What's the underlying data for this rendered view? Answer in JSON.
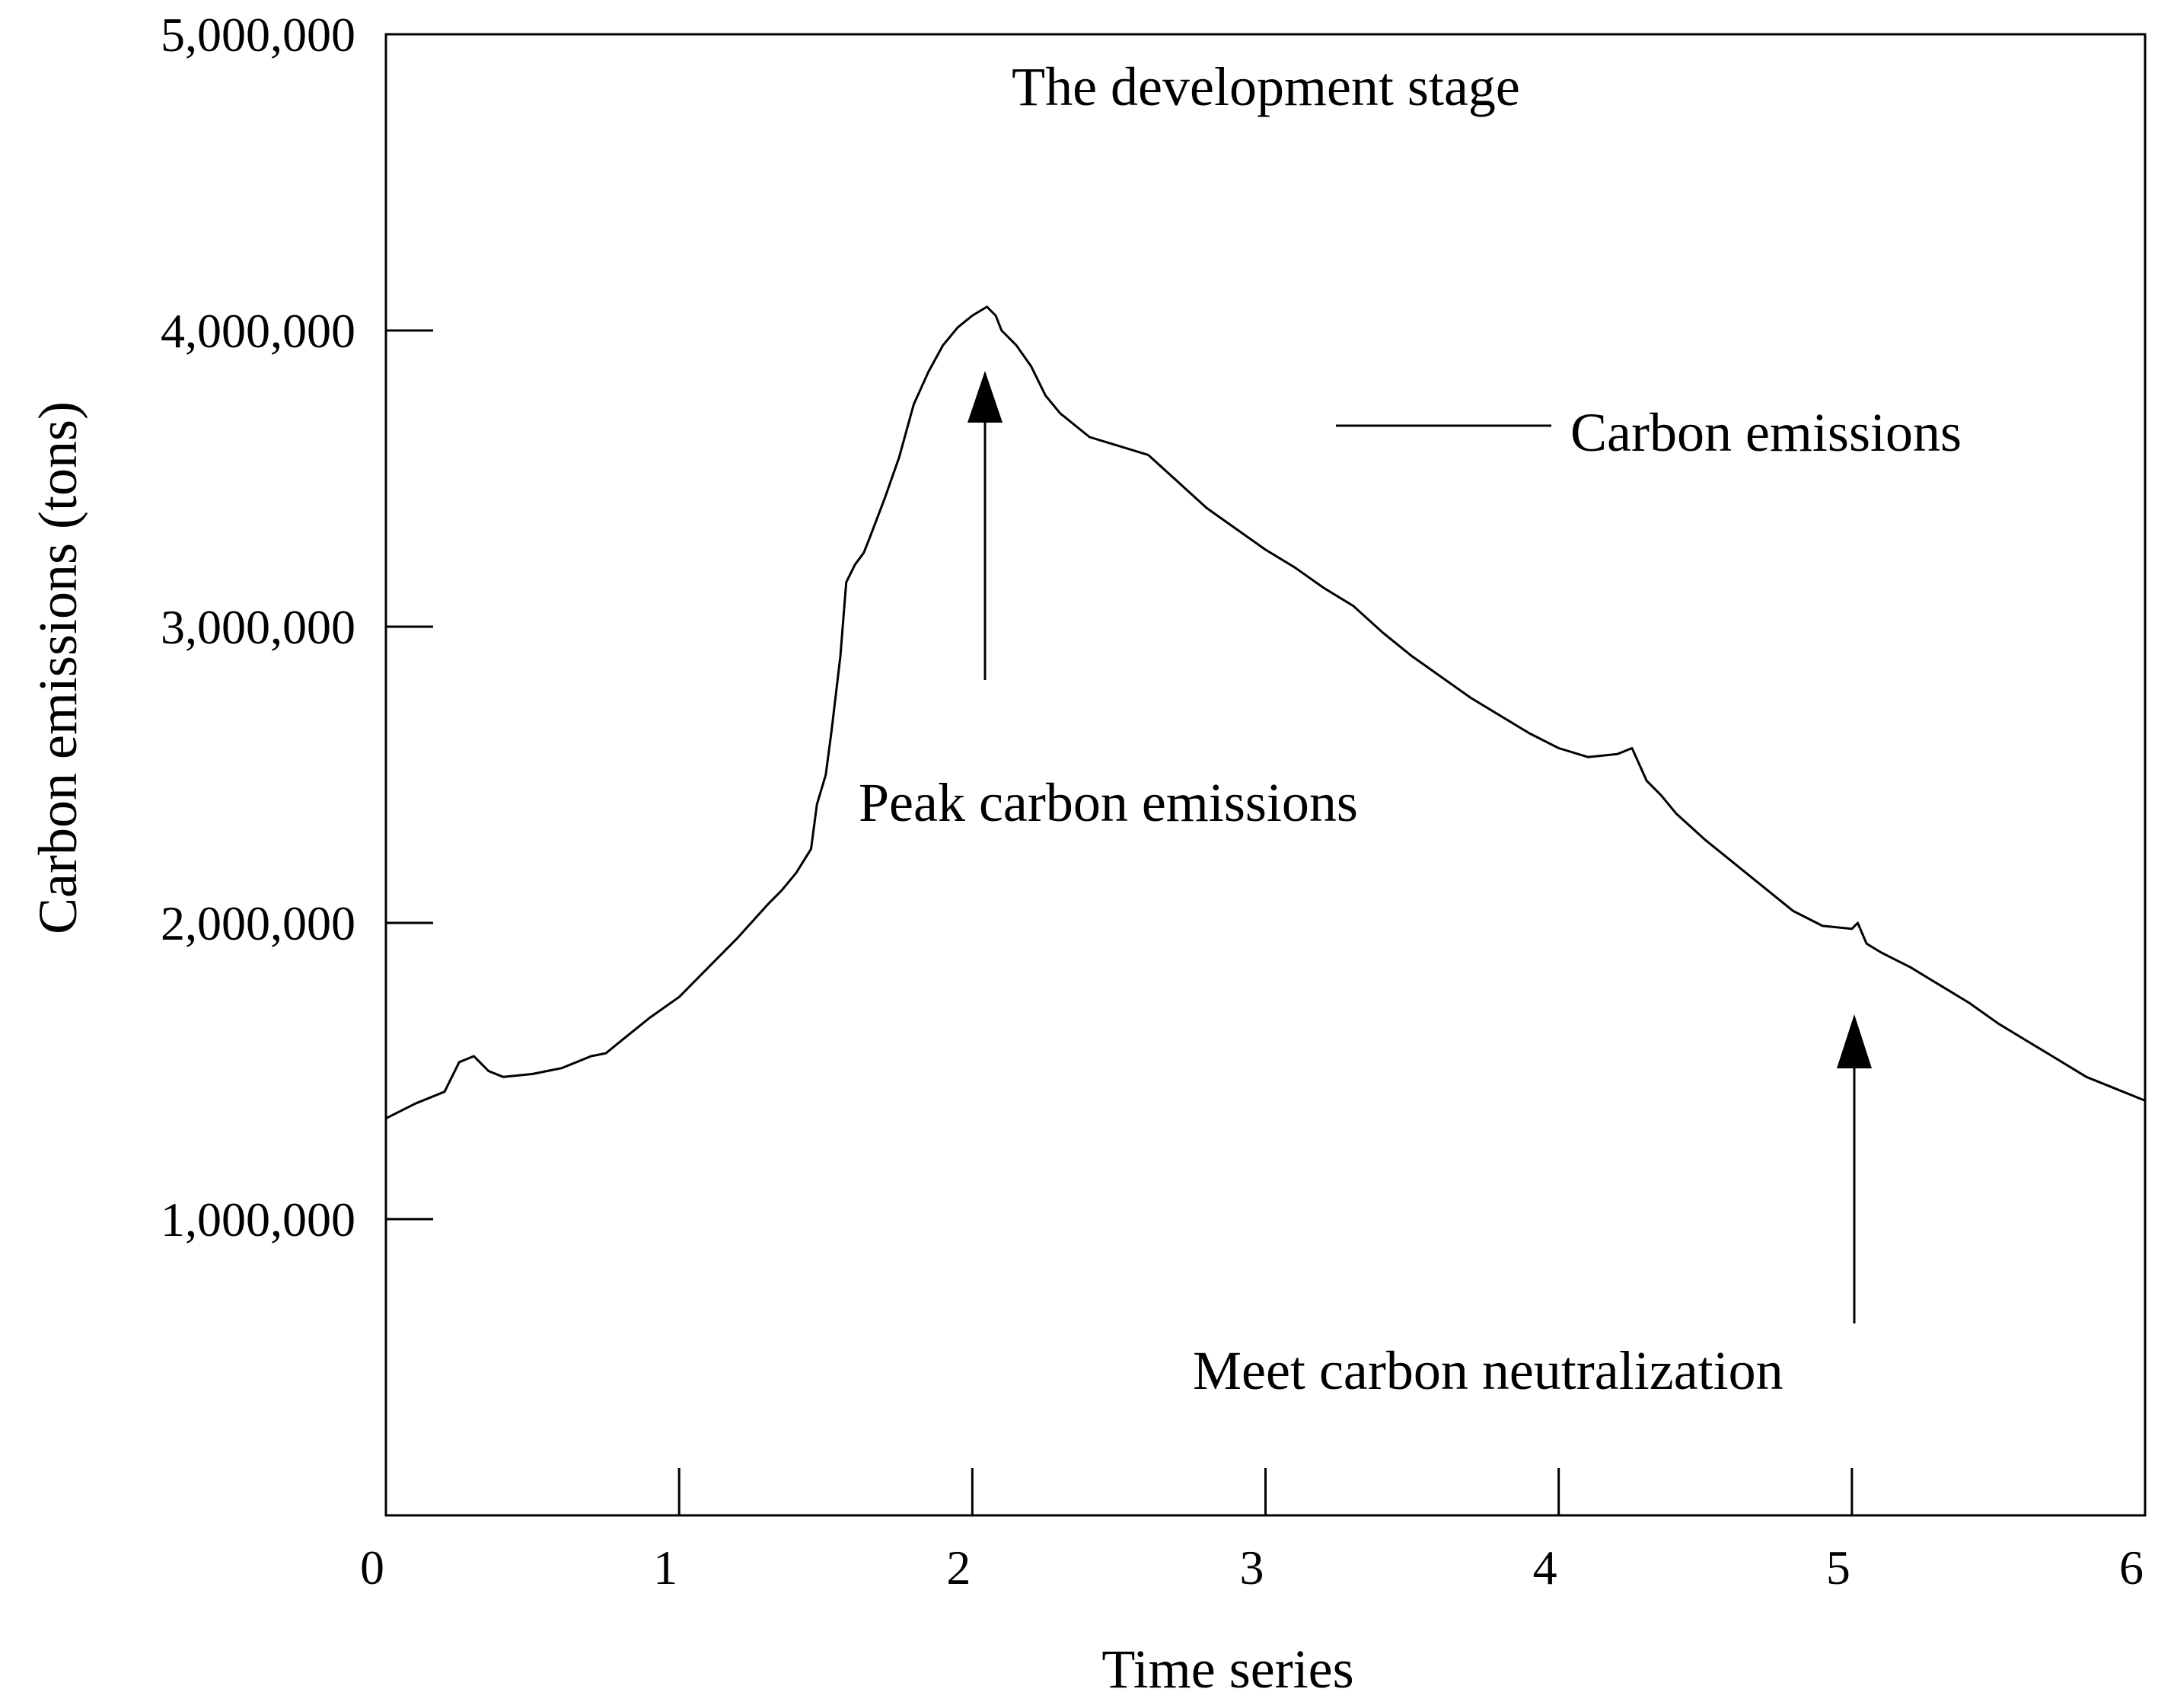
{
  "chart_data": {
    "type": "line",
    "title": "The development stage",
    "xlabel": "Time series",
    "ylabel": "Carbon emissions (tons)",
    "xlim": [
      0,
      6
    ],
    "ylim": [
      0,
      5000000
    ],
    "xticks": [
      {
        "value": 0,
        "label": "0"
      },
      {
        "value": 1,
        "label": "1"
      },
      {
        "value": 2,
        "label": "2"
      },
      {
        "value": 3,
        "label": "3"
      },
      {
        "value": 4,
        "label": "4"
      },
      {
        "value": 5,
        "label": "5"
      },
      {
        "value": 6,
        "label": "6"
      }
    ],
    "yticks": [
      {
        "value": 1000000,
        "label": "1,000,000"
      },
      {
        "value": 2000000,
        "label": "2,000,000"
      },
      {
        "value": 3000000,
        "label": "3,000,000"
      },
      {
        "value": 4000000,
        "label": "4,000,000"
      },
      {
        "value": 5000000,
        "label": "5,000,000"
      }
    ],
    "grid": false,
    "legend": {
      "position": "top-right",
      "entries": [
        "Carbon emissions"
      ]
    },
    "series": [
      {
        "name": "Carbon emissions",
        "color": "#000000",
        "x": [
          0.0,
          0.1,
          0.2,
          0.25,
          0.3,
          0.35,
          0.4,
          0.5,
          0.6,
          0.7,
          0.75,
          0.8,
          0.9,
          1.0,
          1.1,
          1.2,
          1.3,
          1.35,
          1.4,
          1.45,
          1.47,
          1.5,
          1.52,
          1.55,
          1.57,
          1.6,
          1.63,
          1.65,
          1.7,
          1.75,
          1.8,
          1.85,
          1.9,
          1.95,
          2.0,
          2.05,
          2.08,
          2.1,
          2.15,
          2.2,
          2.25,
          2.3,
          2.4,
          2.5,
          2.6,
          2.7,
          2.8,
          2.9,
          3.0,
          3.1,
          3.2,
          3.3,
          3.4,
          3.5,
          3.6,
          3.7,
          3.8,
          3.9,
          4.0,
          4.1,
          4.2,
          4.25,
          4.3,
          4.35,
          4.4,
          4.5,
          4.6,
          4.7,
          4.8,
          4.9,
          5.0,
          5.02,
          5.05,
          5.1,
          5.2,
          5.3,
          5.4,
          5.5,
          5.6,
          5.7,
          5.8,
          5.9,
          6.0
        ],
        "values": [
          1340000,
          1390000,
          1430000,
          1530000,
          1550000,
          1500000,
          1480000,
          1490000,
          1510000,
          1550000,
          1560000,
          1600000,
          1680000,
          1750000,
          1850000,
          1950000,
          2060000,
          2110000,
          2170000,
          2250000,
          2400000,
          2500000,
          2650000,
          2900000,
          3150000,
          3210000,
          3250000,
          3300000,
          3430000,
          3570000,
          3750000,
          3860000,
          3950000,
          4010000,
          4050000,
          4080000,
          4050000,
          4000000,
          3950000,
          3880000,
          3780000,
          3720000,
          3640000,
          3610000,
          3580000,
          3490000,
          3400000,
          3330000,
          3260000,
          3200000,
          3130000,
          3070000,
          2980000,
          2900000,
          2830000,
          2760000,
          2700000,
          2640000,
          2590000,
          2560000,
          2570000,
          2590000,
          2480000,
          2430000,
          2370000,
          2280000,
          2200000,
          2120000,
          2040000,
          1990000,
          1980000,
          2000000,
          1930000,
          1900000,
          1850000,
          1790000,
          1730000,
          1660000,
          1600000,
          1540000,
          1480000,
          1440000,
          1400000
        ]
      }
    ],
    "annotations": [
      {
        "text": "Peak carbon emissions",
        "x": 2.04,
        "y": 4000000
      },
      {
        "text": "Meet carbon neutralization",
        "x": 5.0,
        "y": 1950000
      }
    ]
  }
}
